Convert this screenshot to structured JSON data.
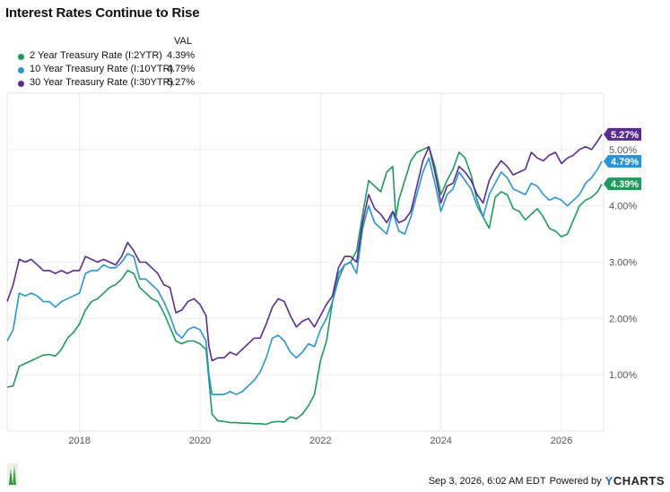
{
  "title": "Interest Rates Continue to Rise",
  "legend": {
    "header": "VAL",
    "items": [
      {
        "label": "2 Year Treasury Rate (I:2YTR)",
        "value": "4.39%",
        "color": "#1d9a5c"
      },
      {
        "label": "10 Year Treasury Rate (I:10YTR)",
        "value": "4.79%",
        "color": "#2a93d5"
      },
      {
        "label": "30 Year Treasury Rate (I:30YTR)",
        "value": "5.27%",
        "color": "#5a2c91"
      }
    ]
  },
  "footer": {
    "timestamp": "Sep 3, 2026, 6:02 AM EDT",
    "powered_by": "Powered by",
    "brand_y": "Y",
    "brand_rest": "CHARTS"
  },
  "chart_data": {
    "type": "line",
    "xlim": [
      2016.8,
      2026.7
    ],
    "ylim": [
      0.0,
      6.0
    ],
    "x_ticks": [
      2018,
      2020,
      2022,
      2024,
      2026
    ],
    "x_tick_labels": [
      "2018",
      "2020",
      "2022",
      "2024",
      "2026"
    ],
    "y_ticks": [
      1,
      2,
      3,
      4,
      5
    ],
    "y_tick_labels": [
      "1.00%",
      "2.00%",
      "3.00%",
      "4.00%",
      "5.00%"
    ],
    "grid": true,
    "legend_position": "top-left",
    "series": [
      {
        "name": "2 Year Treasury Rate (I:2YTR)",
        "color": "#1d9a5c",
        "end_label": "4.39%",
        "x": [
          2016.8,
          2016.9,
          2017.0,
          2017.1,
          2017.2,
          2017.3,
          2017.4,
          2017.5,
          2017.6,
          2017.7,
          2017.8,
          2017.9,
          2018.0,
          2018.1,
          2018.2,
          2018.3,
          2018.4,
          2018.5,
          2018.6,
          2018.7,
          2018.8,
          2018.9,
          2019.0,
          2019.1,
          2019.2,
          2019.3,
          2019.4,
          2019.5,
          2019.6,
          2019.7,
          2019.8,
          2019.9,
          2020.0,
          2020.1,
          2020.15,
          2020.2,
          2020.25,
          2020.3,
          2020.4,
          2020.5,
          2020.6,
          2020.7,
          2020.8,
          2020.9,
          2021.0,
          2021.1,
          2021.2,
          2021.3,
          2021.4,
          2021.5,
          2021.6,
          2021.7,
          2021.8,
          2021.9,
          2022.0,
          2022.1,
          2022.2,
          2022.3,
          2022.4,
          2022.5,
          2022.6,
          2022.7,
          2022.8,
          2022.9,
          2023.0,
          2023.1,
          2023.2,
          2023.25,
          2023.3,
          2023.4,
          2023.5,
          2023.6,
          2023.7,
          2023.8,
          2023.9,
          2024.0,
          2024.1,
          2024.2,
          2024.3,
          2024.4,
          2024.5,
          2024.6,
          2024.7,
          2024.8,
          2024.9,
          2025.0,
          2025.1,
          2025.2,
          2025.3,
          2025.4,
          2025.5,
          2025.6,
          2025.7,
          2025.8,
          2025.9,
          2026.0,
          2026.1,
          2026.2,
          2026.3,
          2026.4,
          2026.5,
          2026.6,
          2026.67
        ],
        "values": [
          0.78,
          0.8,
          1.15,
          1.2,
          1.25,
          1.3,
          1.35,
          1.36,
          1.33,
          1.45,
          1.65,
          1.75,
          1.9,
          2.15,
          2.3,
          2.35,
          2.45,
          2.55,
          2.6,
          2.7,
          2.85,
          2.8,
          2.55,
          2.45,
          2.35,
          2.3,
          2.1,
          1.85,
          1.6,
          1.55,
          1.6,
          1.6,
          1.55,
          1.45,
          0.9,
          0.3,
          0.24,
          0.18,
          0.17,
          0.15,
          0.15,
          0.14,
          0.14,
          0.13,
          0.13,
          0.12,
          0.16,
          0.17,
          0.16,
          0.25,
          0.22,
          0.3,
          0.45,
          0.65,
          1.25,
          1.6,
          2.3,
          2.7,
          2.95,
          3.0,
          3.2,
          3.85,
          4.45,
          4.35,
          4.25,
          4.6,
          4.7,
          3.8,
          4.1,
          4.45,
          4.8,
          4.95,
          5.0,
          5.05,
          4.7,
          4.2,
          4.45,
          4.65,
          4.95,
          4.85,
          4.55,
          4.1,
          3.8,
          3.6,
          4.15,
          4.25,
          4.2,
          3.95,
          3.9,
          3.75,
          3.85,
          3.95,
          3.8,
          3.6,
          3.55,
          3.45,
          3.5,
          3.75,
          4.0,
          4.1,
          4.15,
          4.25,
          4.39
        ]
      },
      {
        "name": "10 Year Treasury Rate (I:10YTR)",
        "color": "#2a93d5",
        "end_label": "4.79%",
        "x": [
          2016.8,
          2016.9,
          2017.0,
          2017.1,
          2017.2,
          2017.3,
          2017.4,
          2017.5,
          2017.6,
          2017.7,
          2017.8,
          2017.9,
          2018.0,
          2018.1,
          2018.2,
          2018.3,
          2018.4,
          2018.5,
          2018.6,
          2018.7,
          2018.8,
          2018.9,
          2019.0,
          2019.1,
          2019.2,
          2019.3,
          2019.4,
          2019.5,
          2019.6,
          2019.7,
          2019.8,
          2019.9,
          2020.0,
          2020.1,
          2020.15,
          2020.2,
          2020.3,
          2020.4,
          2020.5,
          2020.6,
          2020.7,
          2020.8,
          2020.9,
          2021.0,
          2021.1,
          2021.2,
          2021.3,
          2021.4,
          2021.5,
          2021.6,
          2021.7,
          2021.8,
          2021.9,
          2022.0,
          2022.1,
          2022.2,
          2022.3,
          2022.4,
          2022.5,
          2022.6,
          2022.7,
          2022.8,
          2022.9,
          2023.0,
          2023.1,
          2023.2,
          2023.3,
          2023.4,
          2023.5,
          2023.6,
          2023.7,
          2023.8,
          2023.9,
          2024.0,
          2024.1,
          2024.2,
          2024.3,
          2024.4,
          2024.5,
          2024.6,
          2024.7,
          2024.8,
          2024.9,
          2025.0,
          2025.1,
          2025.2,
          2025.3,
          2025.4,
          2025.5,
          2025.6,
          2025.7,
          2025.8,
          2025.9,
          2026.0,
          2026.1,
          2026.2,
          2026.3,
          2026.4,
          2026.5,
          2026.6,
          2026.67
        ],
        "values": [
          1.6,
          1.8,
          2.45,
          2.4,
          2.45,
          2.4,
          2.3,
          2.3,
          2.2,
          2.3,
          2.35,
          2.4,
          2.45,
          2.8,
          2.85,
          2.85,
          2.95,
          2.9,
          2.9,
          3.0,
          3.15,
          3.1,
          2.7,
          2.7,
          2.6,
          2.5,
          2.3,
          2.05,
          1.75,
          1.65,
          1.8,
          1.85,
          1.8,
          1.6,
          1.0,
          0.65,
          0.65,
          0.65,
          0.7,
          0.65,
          0.7,
          0.8,
          0.9,
          1.05,
          1.3,
          1.65,
          1.7,
          1.6,
          1.4,
          1.3,
          1.4,
          1.55,
          1.5,
          1.8,
          2.0,
          2.3,
          2.8,
          2.95,
          3.0,
          2.8,
          3.6,
          4.0,
          3.7,
          3.6,
          3.5,
          3.9,
          3.55,
          3.5,
          3.8,
          4.2,
          4.6,
          4.85,
          4.4,
          3.9,
          4.2,
          4.3,
          4.6,
          4.45,
          4.3,
          4.0,
          3.8,
          4.2,
          4.4,
          4.6,
          4.5,
          4.3,
          4.25,
          4.2,
          4.4,
          4.35,
          4.2,
          4.1,
          4.15,
          4.1,
          4.0,
          4.1,
          4.2,
          4.4,
          4.5,
          4.65,
          4.79
        ]
      },
      {
        "name": "30 Year Treasury Rate (I:30YTR)",
        "color": "#5a2c91",
        "end_label": "5.27%",
        "x": [
          2016.8,
          2016.9,
          2017.0,
          2017.1,
          2017.2,
          2017.3,
          2017.4,
          2017.5,
          2017.6,
          2017.7,
          2017.8,
          2017.9,
          2018.0,
          2018.1,
          2018.2,
          2018.3,
          2018.4,
          2018.5,
          2018.6,
          2018.7,
          2018.8,
          2018.9,
          2019.0,
          2019.1,
          2019.2,
          2019.3,
          2019.4,
          2019.5,
          2019.6,
          2019.7,
          2019.8,
          2019.9,
          2020.0,
          2020.1,
          2020.15,
          2020.2,
          2020.3,
          2020.4,
          2020.5,
          2020.6,
          2020.7,
          2020.8,
          2020.9,
          2021.0,
          2021.1,
          2021.2,
          2021.3,
          2021.4,
          2021.5,
          2021.6,
          2021.7,
          2021.8,
          2021.9,
          2022.0,
          2022.1,
          2022.2,
          2022.3,
          2022.4,
          2022.5,
          2022.6,
          2022.7,
          2022.8,
          2022.9,
          2023.0,
          2023.1,
          2023.2,
          2023.3,
          2023.4,
          2023.5,
          2023.6,
          2023.7,
          2023.8,
          2023.9,
          2024.0,
          2024.1,
          2024.2,
          2024.3,
          2024.4,
          2024.5,
          2024.6,
          2024.7,
          2024.8,
          2024.9,
          2025.0,
          2025.1,
          2025.2,
          2025.3,
          2025.4,
          2025.5,
          2025.6,
          2025.7,
          2025.8,
          2025.9,
          2026.0,
          2026.1,
          2026.2,
          2026.3,
          2026.4,
          2026.5,
          2026.6,
          2026.67
        ],
        "values": [
          2.3,
          2.6,
          3.05,
          3.0,
          3.05,
          2.95,
          2.85,
          2.85,
          2.8,
          2.85,
          2.8,
          2.85,
          2.85,
          3.1,
          3.05,
          3.0,
          3.05,
          3.0,
          2.95,
          3.1,
          3.35,
          3.2,
          3.0,
          3.0,
          2.9,
          2.8,
          2.6,
          2.55,
          2.1,
          2.15,
          2.3,
          2.35,
          2.25,
          2.05,
          1.5,
          1.25,
          1.3,
          1.3,
          1.4,
          1.35,
          1.45,
          1.55,
          1.65,
          1.65,
          1.9,
          2.2,
          2.35,
          2.3,
          2.05,
          1.85,
          1.95,
          2.0,
          1.85,
          2.05,
          2.25,
          2.4,
          2.9,
          3.1,
          3.1,
          3.0,
          3.7,
          4.2,
          3.95,
          3.85,
          3.7,
          3.9,
          3.7,
          3.75,
          3.9,
          4.35,
          4.8,
          5.05,
          4.6,
          4.05,
          4.35,
          4.4,
          4.7,
          4.6,
          4.45,
          4.2,
          4.05,
          4.45,
          4.65,
          4.8,
          4.7,
          4.55,
          4.6,
          4.65,
          4.95,
          4.85,
          4.8,
          4.9,
          4.95,
          4.75,
          4.85,
          4.9,
          5.0,
          5.05,
          5.0,
          5.15,
          5.27
        ]
      }
    ]
  }
}
